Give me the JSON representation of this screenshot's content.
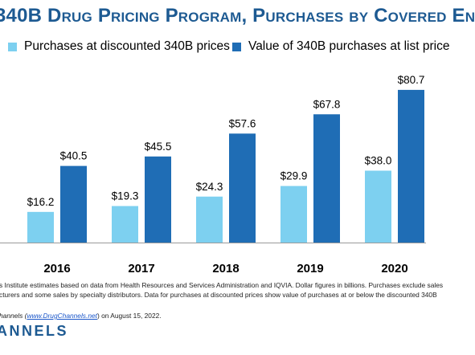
{
  "chart_data": {
    "type": "bar",
    "title": "340B Drug Pricing Program, Purchases by Covered En",
    "categories": [
      "2016",
      "2017",
      "2018",
      "2019",
      "2020"
    ],
    "series": [
      {
        "name": "Purchases at discounted 340B prices",
        "color": "#7dd0f0",
        "values": [
          16.2,
          19.3,
          24.3,
          29.9,
          38.0
        ],
        "labels": [
          "$16.2",
          "$19.3",
          "$24.3",
          "$29.9",
          "$38.0"
        ]
      },
      {
        "name": "Value of 340B purchases at list price",
        "color": "#1f6db5",
        "values": [
          40.5,
          45.5,
          57.6,
          67.8,
          80.7
        ],
        "labels": [
          "$40.5",
          "$45.5",
          "$57.6",
          "$67.8",
          "$80.7"
        ]
      }
    ],
    "ylim": [
      0,
      90
    ],
    "grid": false,
    "legend": "top"
  },
  "footnotes": {
    "line1": "s Institute estimates based on data from Health Resources and Services Administration and IQVIA. Dollar figures in billions. Purchases exclude sales",
    "line2": "cturers and some sales by specialty distributors. Data for purchases at discounted prices show value of purchases at or below the discounted 340B",
    "line3_prefix": "hannels (",
    "line3_link": "www.DrugChannels.net",
    "line3_suffix": ") on August 15, 2022."
  },
  "brand": "ANNELS"
}
